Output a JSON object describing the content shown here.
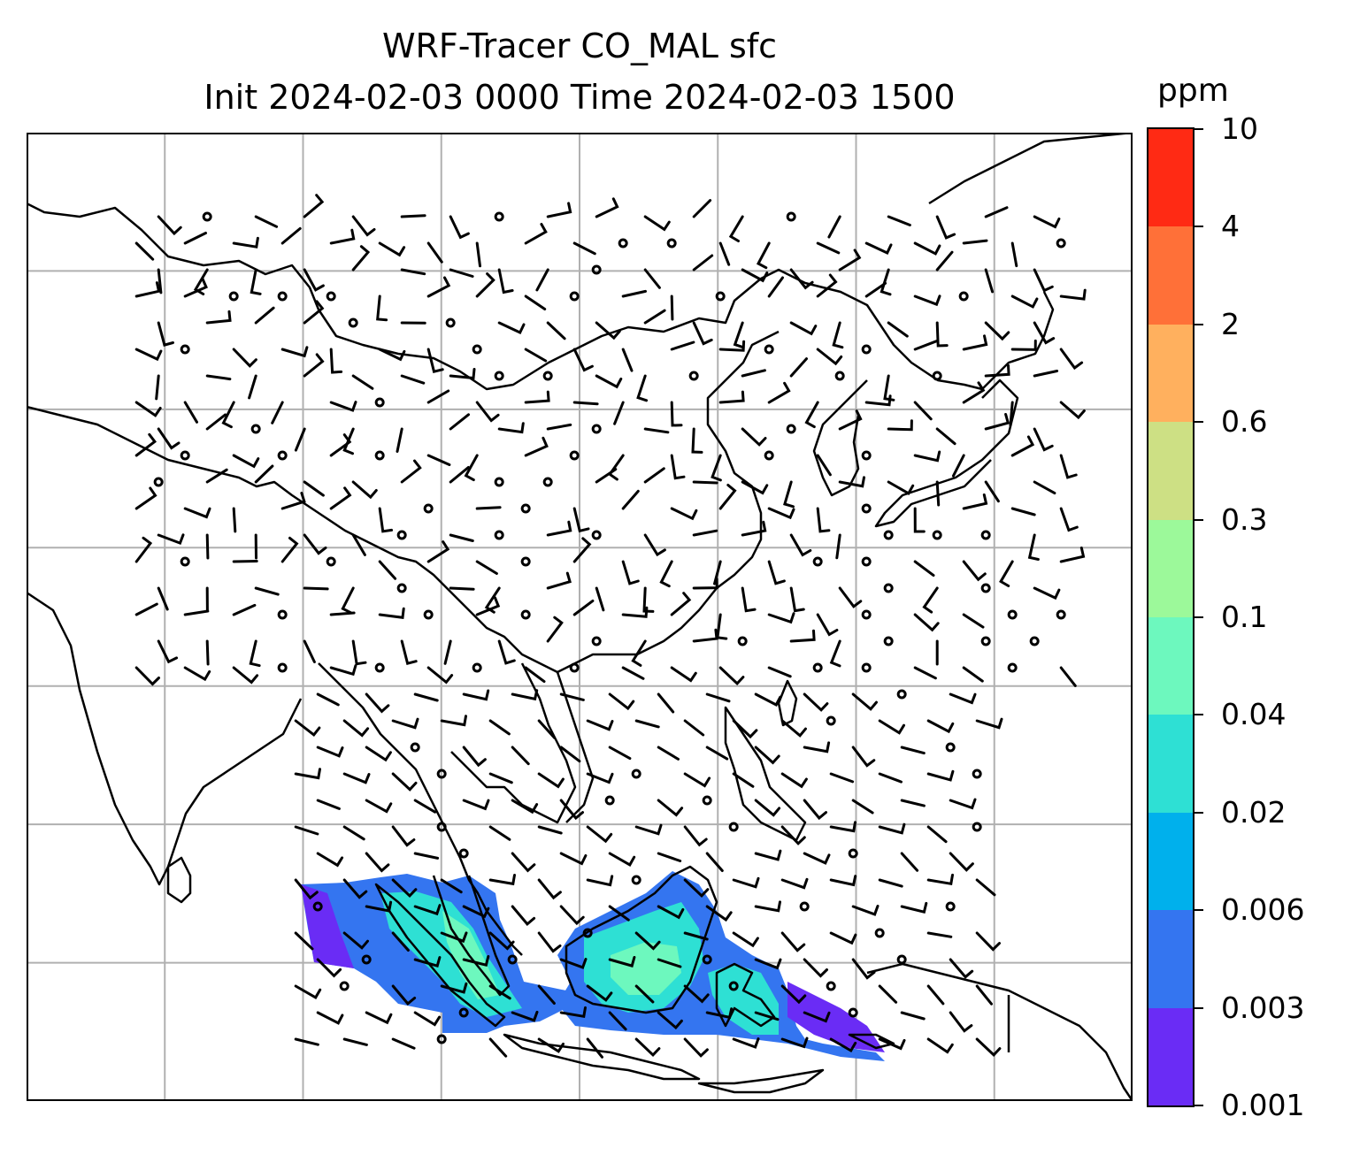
{
  "title": "WRF-Tracer CO_MAL sfc",
  "subtitle": "Init 2024-02-03 0000 Time 2024-02-03 1500",
  "colorbar": {
    "unit": "ppm",
    "ticks": [
      "0.001",
      "0.003",
      "0.006",
      "0.02",
      "0.04",
      "0.1",
      "0.3",
      "0.6",
      "2",
      "4",
      "10"
    ],
    "colors": [
      "#6a2cf5",
      "#3475f0",
      "#00b0ec",
      "#2ee0d4",
      "#6df8be",
      "#9cf99a",
      "#cde084",
      "#ffb05e",
      "#ff7038",
      "#ff2a14"
    ]
  },
  "map": {
    "gridlines": "on",
    "grid_columns": 8,
    "grid_rows": 7,
    "field": "CO_MAL tracer concentration, surface",
    "overlay": "wind barbs"
  }
}
